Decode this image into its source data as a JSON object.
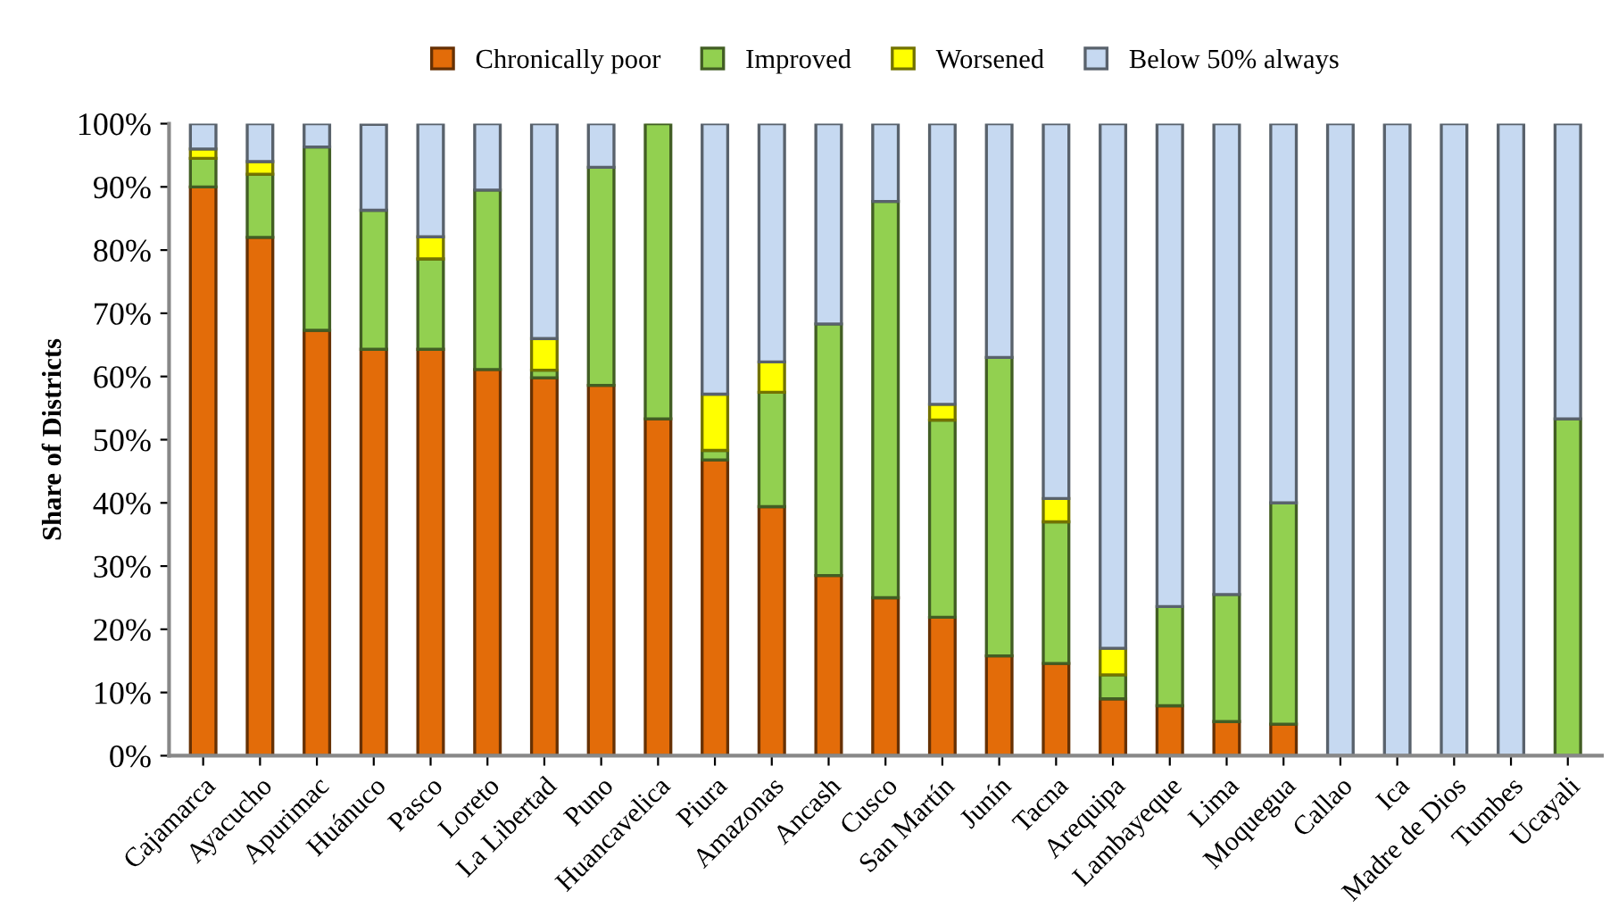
{
  "chart_data": {
    "type": "bar",
    "stacked": true,
    "ylabel": "Share of Districts",
    "categories": [
      "Cajamarca",
      "Ayacucho",
      "Apurimac",
      "Huánuco",
      "Pasco",
      "Loreto",
      "La Libertad",
      "Puno",
      "Huancavelica",
      "Piura",
      "Amazonas",
      "Ancash",
      "Cusco",
      "San Martín",
      "Junín",
      "Tacna",
      "Arequipa",
      "Lambayeque",
      "Lima",
      "Moquegua",
      "Callao",
      "Ica",
      "Madre de Dios",
      "Tumbes",
      "Ucayali"
    ],
    "series": [
      {
        "name": "Chronically poor",
        "color": "#e36c09",
        "values": [
          90,
          82,
          67.3,
          64.3,
          64.3,
          61.1,
          59.8,
          58.6,
          53.3,
          46.8,
          39.4,
          28.5,
          25,
          21.9,
          15.8,
          14.6,
          9,
          7.9,
          5.4,
          5,
          0,
          0,
          0,
          0,
          0
        ]
      },
      {
        "name": "Improved",
        "color": "#92d050",
        "values": [
          4.5,
          10,
          29,
          22,
          14.3,
          28.4,
          1.2,
          34.5,
          46.7,
          1.5,
          18.1,
          39.8,
          62.7,
          31.2,
          47.2,
          22.4,
          3.8,
          15.7,
          20.1,
          35,
          0,
          0,
          0,
          0,
          53.3
        ]
      },
      {
        "name": "Worsened",
        "color": "#ffff00",
        "values": [
          1.5,
          2,
          0,
          0,
          3.5,
          0,
          5,
          0,
          0,
          8.9,
          4.8,
          0,
          0,
          2.5,
          0,
          3.7,
          4.2,
          0,
          0,
          0,
          0,
          0,
          0,
          0,
          0
        ]
      },
      {
        "name": "Below 50% always",
        "color": "#c6d9f1",
        "values": [
          4,
          6,
          3.7,
          13.6,
          17.9,
          10.5,
          34,
          6.9,
          0,
          42.8,
          37.7,
          31.7,
          12.3,
          44.4,
          37,
          59.3,
          83,
          76.4,
          74.5,
          60,
          100,
          100,
          100,
          100,
          46.7
        ]
      }
    ],
    "ylim": [
      0,
      100
    ],
    "yticks": [
      {
        "value": 0,
        "label": "0%"
      },
      {
        "value": 10,
        "label": "10%"
      },
      {
        "value": 20,
        "label": "20%"
      },
      {
        "value": 30,
        "label": "30%"
      },
      {
        "value": 40,
        "label": "40%"
      },
      {
        "value": 50,
        "label": "50%"
      },
      {
        "value": 60,
        "label": "60%"
      },
      {
        "value": 70,
        "label": "70%"
      },
      {
        "value": 80,
        "label": "80%"
      },
      {
        "value": 90,
        "label": "90%"
      },
      {
        "value": 100,
        "label": "100%"
      }
    ],
    "grid": false,
    "legend": "top"
  }
}
